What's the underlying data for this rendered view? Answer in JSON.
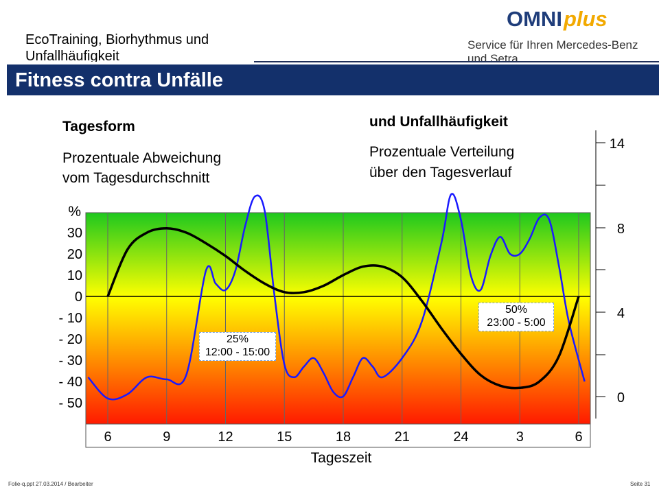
{
  "header": {
    "topic": "EcoTraining, Biorhythmus und Unfallhäufigkeit",
    "logo_main": "OMNI",
    "logo_plus": "plus",
    "logo_sub": "Service für Ihren Mercedes-Benz und Setra"
  },
  "title": "Fitness contra Unfälle",
  "left_label": {
    "heading": "Tagesform",
    "desc_line1": "Prozentuale Abweichung",
    "desc_line2": "vom Tagesdurchschnitt"
  },
  "right_label": {
    "heading": "und Unfallhäufigkeit",
    "desc_line1": "Prozentuale Verteilung",
    "desc_line2": "über den Tagesverlauf"
  },
  "footer": {
    "left": "Folie-q.ppt   27.03.2014   / Bearbeiter",
    "right": "Seite 31"
  },
  "colors": {
    "title_bar": "#13306b",
    "gradient_top": "#1ec81e",
    "gradient_mid": "#ffff00",
    "gradient_bottom": "#ff1a00",
    "tagesform_line": "#000000",
    "unfall_line": "#1a1aff"
  },
  "chart_data": {
    "type": "line",
    "xlabel": "Tageszeit",
    "x_ticks": [
      "6",
      "9",
      "12",
      "15",
      "18",
      "21",
      "24",
      "3",
      "6"
    ],
    "left_axis": {
      "label": "%",
      "ticks": [
        "30",
        "20",
        "10",
        "0",
        "- 10",
        "- 20",
        "- 30",
        "- 40",
        "- 50"
      ],
      "ylim": [
        -60,
        40
      ]
    },
    "right_axis": {
      "ticks": [
        "14",
        "8",
        "4",
        "0"
      ]
    },
    "series": [
      {
        "key": "tagesform",
        "unit": "percent",
        "x": [
          6,
          7,
          8,
          9,
          10,
          11,
          12,
          13,
          14,
          15,
          16,
          17,
          18,
          19,
          20,
          21,
          22,
          23,
          24,
          25,
          26,
          27,
          28,
          29,
          30
        ],
        "values": [
          0,
          22,
          30,
          32,
          30,
          25,
          19,
          12,
          6,
          2,
          2,
          5,
          10,
          14,
          14,
          9,
          -2,
          -15,
          -27,
          -37,
          -42,
          -43,
          -40,
          -28,
          0
        ]
      },
      {
        "key": "unfallhaeufigkeit",
        "unit": "percent share",
        "x": [
          5,
          6,
          7,
          8,
          9,
          10,
          11,
          11.5,
          12,
          12.5,
          13,
          13.5,
          14,
          14.5,
          15,
          15.5,
          16,
          16.5,
          17,
          17.5,
          18,
          18.5,
          19,
          19.5,
          20,
          21,
          22,
          23,
          23.5,
          24,
          24.5,
          25,
          25.5,
          26,
          26.5,
          27,
          27.5,
          28,
          28.5,
          29,
          29.5,
          30.3
        ],
        "values": [
          -38,
          -48,
          -46,
          -38,
          -39,
          -37,
          12,
          6,
          3,
          12,
          33,
          47,
          40,
          0,
          -32,
          -38,
          -33,
          -29,
          -36,
          -45,
          -47,
          -38,
          -29,
          -33,
          -38,
          -29,
          -12,
          25,
          48,
          36,
          10,
          3,
          19,
          28,
          20,
          20,
          27,
          37,
          36,
          14,
          -12,
          -40
        ]
      }
    ],
    "annotations": [
      {
        "line1": "25%",
        "line2": "12:00 - 15:00"
      },
      {
        "line1": "50%",
        "line2": "23:00 - 5:00"
      }
    ]
  }
}
